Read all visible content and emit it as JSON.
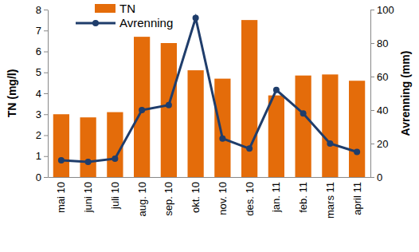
{
  "chart_data": {
    "type": "bar",
    "categories": [
      "mai 10",
      "juni 10",
      "juli 10",
      "aug. 10",
      "sep. 10",
      "okt. 10",
      "nov. 10",
      "des. 10",
      "jan. 11",
      "feb. 11",
      "mars 11",
      "april 11"
    ],
    "series": [
      {
        "name": "TN",
        "type": "bar",
        "color": "#E46C0A",
        "values": [
          3.0,
          2.85,
          3.1,
          6.7,
          6.4,
          5.1,
          4.7,
          7.5,
          3.9,
          4.85,
          4.9,
          4.6
        ]
      },
      {
        "name": "Avrenning",
        "type": "line",
        "color": "#1F3D6B",
        "marker": "circle",
        "axis": "y2",
        "values": [
          10,
          9,
          11,
          40,
          43,
          95,
          23,
          17,
          52,
          38,
          20,
          15
        ]
      }
    ],
    "ylabel": "TN (mg/l)",
    "y2label": "Avrenning (mm)",
    "ylim": [
      0,
      8
    ],
    "yticks": [
      0,
      1,
      2,
      3,
      4,
      5,
      6,
      7,
      8
    ],
    "y2lim": [
      0,
      100
    ],
    "y2ticks": [
      0,
      20,
      40,
      60,
      80,
      100
    ],
    "legend": "top-left"
  }
}
